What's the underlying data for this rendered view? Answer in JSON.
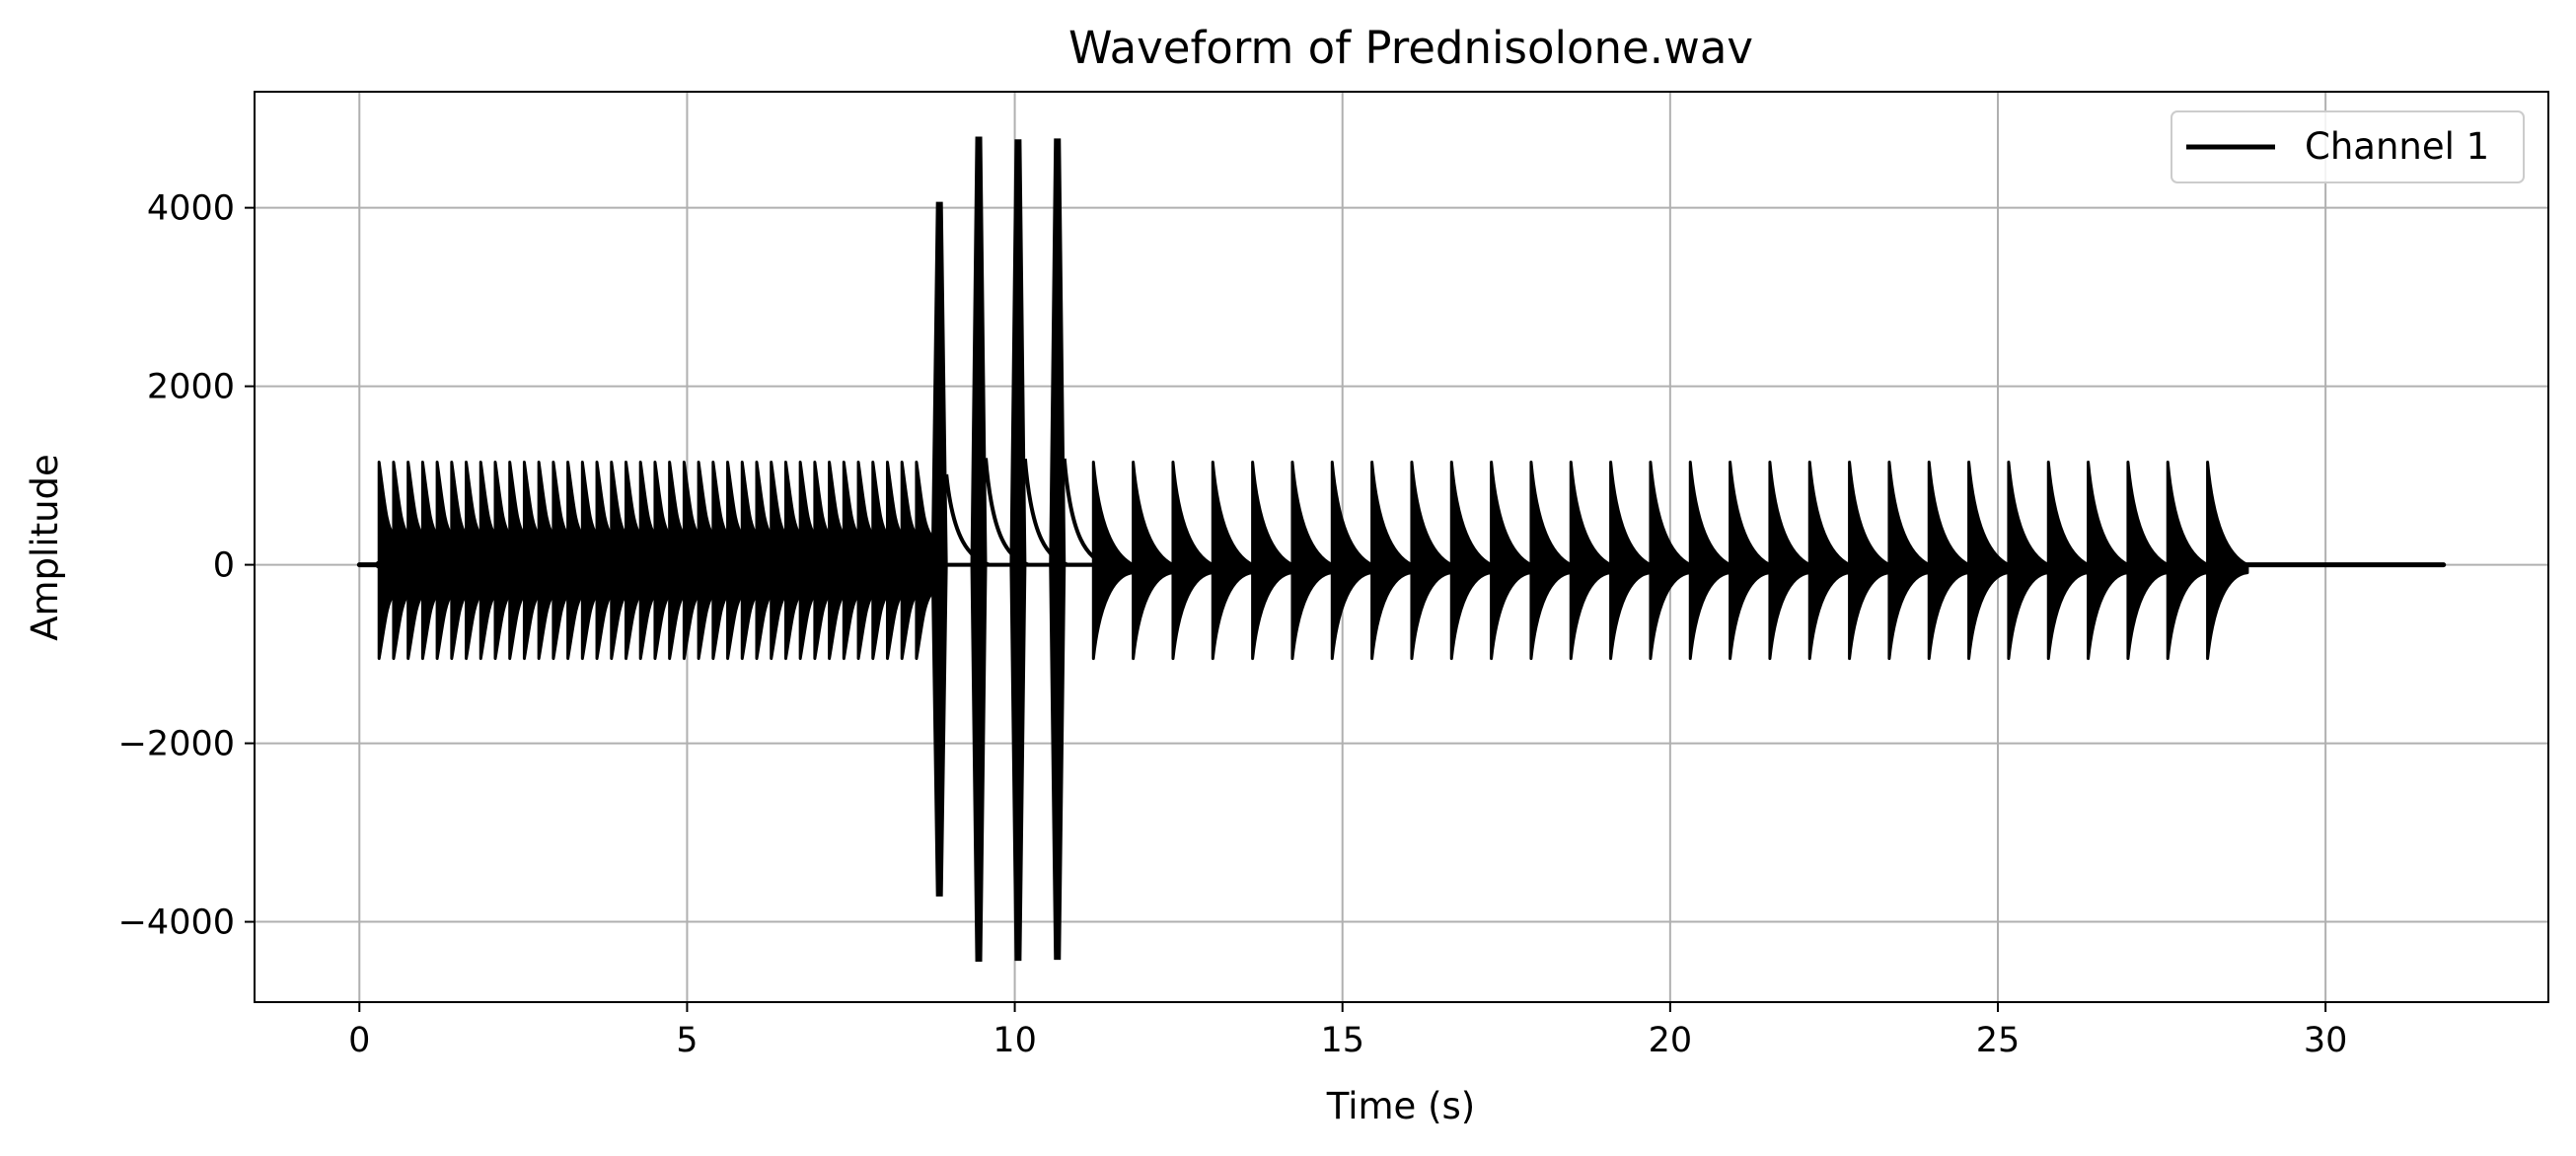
{
  "chart_data": {
    "type": "line",
    "title": "Waveform of Prednisolone.wav",
    "xlabel": "Time (s)",
    "ylabel": "Amplitude",
    "xlim": [
      -1.6,
      33.4
    ],
    "ylim": [
      -4900,
      5300
    ],
    "xticks": [
      0,
      5,
      10,
      15,
      20,
      25,
      30
    ],
    "yticks": [
      -4000,
      -2000,
      0,
      2000,
      4000
    ],
    "ytick_labels": [
      "−4000",
      "−2000",
      "0",
      "2000",
      "4000"
    ],
    "grid": true,
    "legend_position": "top-right",
    "series": [
      {
        "name": "Channel 1",
        "color": "#000000",
        "duration_s": 31.8,
        "segments": [
          {
            "kind": "dense-oscillating-bursts",
            "start_s": 0.3,
            "end_s": 8.5,
            "burst_count": 38,
            "peak_max": 1150,
            "peak_min": -1050
          },
          {
            "kind": "large-spikes",
            "spikes": [
              {
                "t": 8.85,
                "max": 4050,
                "min": -3700
              },
              {
                "t": 9.45,
                "max": 4780,
                "min": -4430
              },
              {
                "t": 10.05,
                "max": 4750,
                "min": -4420
              },
              {
                "t": 10.65,
                "max": 4760,
                "min": -4410
              }
            ]
          },
          {
            "kind": "decaying-bursts",
            "start_s": 11.2,
            "end_s": 28.2,
            "burst_count": 29,
            "peak_max": 1150,
            "peak_min": -1050
          },
          {
            "kind": "silence",
            "start_s": 28.8,
            "end_s": 31.8,
            "amplitude": 0
          }
        ]
      }
    ]
  }
}
